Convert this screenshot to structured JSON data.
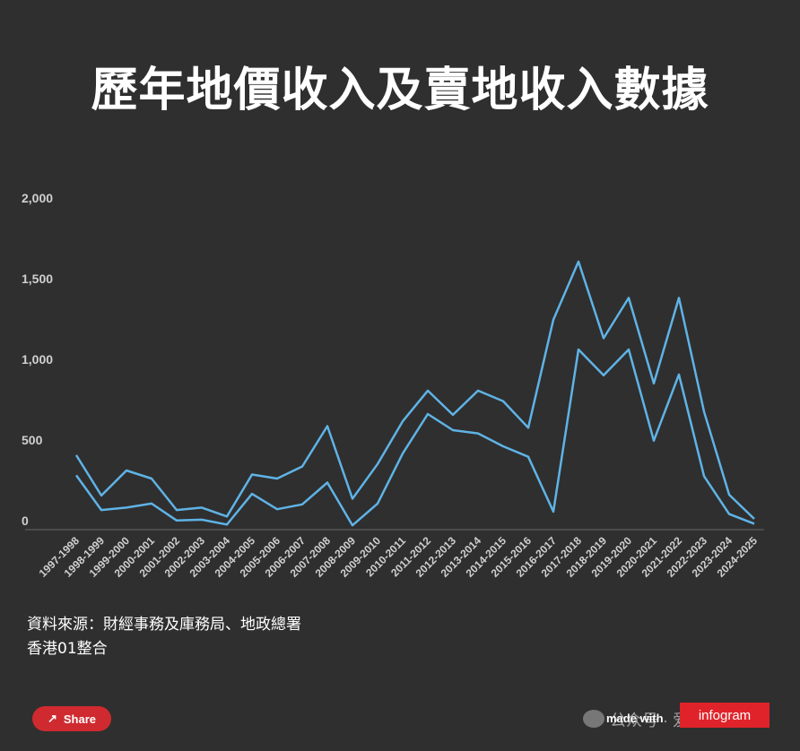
{
  "chart_data": {
    "type": "line",
    "title": "歷年地價收入及賣地收入數據",
    "categories": [
      "1997-1998",
      "1998-1999",
      "1999-2000",
      "2000-2001",
      "2001-2002",
      "2002-2003",
      "2003-2004",
      "2004-2005",
      "2005-2006",
      "2006-2007",
      "2007-2008",
      "2008-2009",
      "2009-2010",
      "2010-2011",
      "2011-2012",
      "2012-2013",
      "2013-2014",
      "2014-2015",
      "2015-2016",
      "2016-2017",
      "2017-2018",
      "2018-2019",
      "2019-2020",
      "2020-2021",
      "2021-2022",
      "2022-2023",
      "2023-2024",
      "2024-2025"
    ],
    "series": [
      {
        "values": [
          445,
          195,
          350,
          300,
          105,
          120,
          65,
          325,
          300,
          375,
          625,
          175,
          390,
          655,
          845,
          695,
          845,
          780,
          615,
          1285,
          1645,
          1170,
          1420,
          890,
          1420,
          715,
          200,
          50
        ]
      },
      {
        "values": [
          320,
          105,
          120,
          145,
          40,
          45,
          15,
          205,
          110,
          140,
          275,
          10,
          145,
          455,
          700,
          600,
          580,
          500,
          435,
          95,
          1100,
          940,
          1100,
          535,
          945,
          315,
          80,
          20
        ]
      }
    ],
    "yticks": [
      "2,000",
      "1,500",
      "1,000",
      "500",
      "0"
    ],
    "ylim": [
      0,
      2200
    ],
    "line_color": "#5fb3e6"
  },
  "source_line1": "資料來源：財經事務及庫務局、地政總署",
  "source_line2": "香港01整合",
  "share_label": "Share",
  "watermark_text": "公众号 · 爱港漂",
  "made_with": "made with",
  "infogram_label": "infogram",
  "share_icon": "share-icon",
  "wechat_icon": "wechat-icon"
}
